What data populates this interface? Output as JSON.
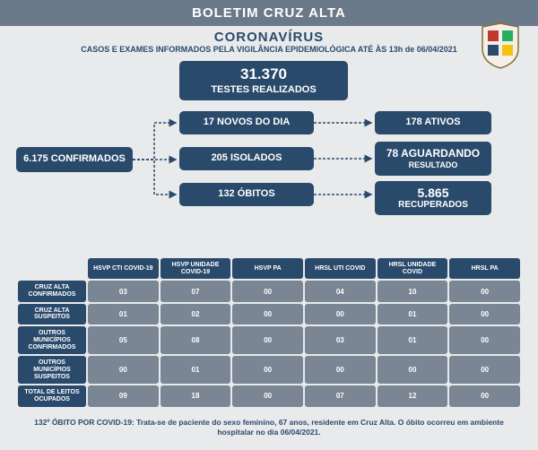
{
  "header": {
    "title": "BOLETIM CRUZ ALTA",
    "subtitle": "CORONAVÍRUS",
    "description": "CASOS E EXAMES INFORMADOS PELA VIGILÂNCIA EPIDEMIOLÓGICA ATÉ ÀS 13h de 06/04/2021"
  },
  "flow": {
    "tests": {
      "num": "31.370",
      "label": "TESTES REALIZADOS"
    },
    "confirmed": "6.175 CONFIRMADOS",
    "new": "17 NOVOS DO DIA",
    "active": "178 ATIVOS",
    "isolated": "205 ISOLADOS",
    "awaiting": {
      "num": "78 AGUARDANDO",
      "label": "RESULTADO"
    },
    "deaths": "132 ÓBITOS",
    "recovered": {
      "num": "5.865",
      "label": "RECUPERADOS"
    }
  },
  "table": {
    "columns": [
      "HSVP\nCTI COVID-19",
      "HSVP UNIDADE\nCOVID-19",
      "HSVP\nPA",
      "HRSL UTI COVID",
      "HRSL UNIDADE\nCOVID",
      "HRSL PA"
    ],
    "row_headers": [
      "CRUZ ALTA\nCONFIRMADOS",
      "CRUZ ALTA\nSUSPEITOS",
      "OUTROS MUNICÍPIOS\nCONFIRMADOS",
      "OUTROS MUNICÍPIOS\nSUSPEITOS",
      "TOTAL DE LEITOS\nOCUPADOS"
    ],
    "rows": [
      [
        "03",
        "07",
        "00",
        "04",
        "10",
        "00"
      ],
      [
        "01",
        "02",
        "00",
        "00",
        "01",
        "00"
      ],
      [
        "05",
        "08",
        "00",
        "03",
        "01",
        "00"
      ],
      [
        "00",
        "01",
        "00",
        "00",
        "00",
        "00"
      ],
      [
        "09",
        "18",
        "00",
        "07",
        "12",
        "00"
      ]
    ]
  },
  "footnote": "132º ÓBITO POR COVID-19: Trata-se de paciente do sexo feminino, 67 anos, residente em Cruz Alta. O óbito ocorreu em ambiente hospitalar no dia 06/04/2021.",
  "colors": {
    "header_bg": "#6b7a8a",
    "box_bg": "#2a4a6b",
    "cell_bg": "#7a8694",
    "page_bg": "#e8eaec"
  }
}
